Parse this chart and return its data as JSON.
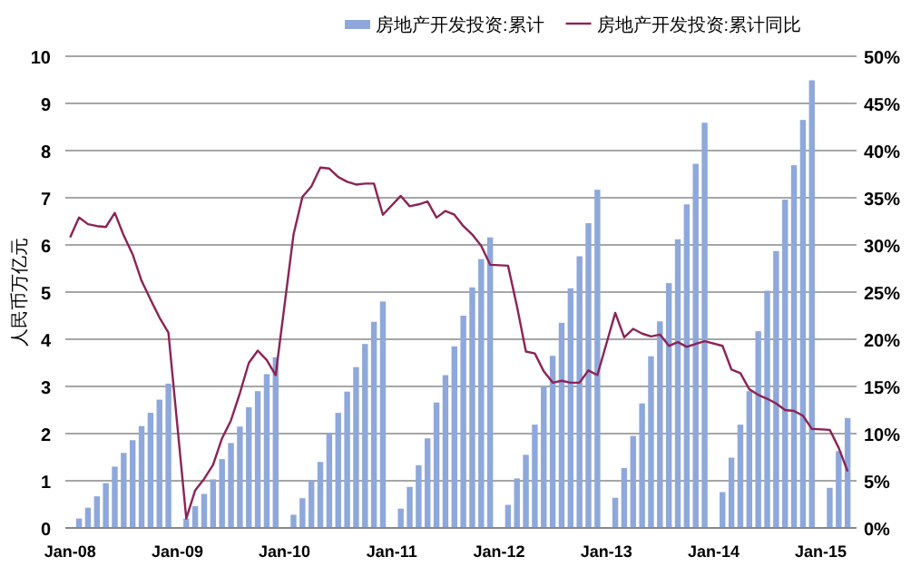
{
  "chart_data": {
    "type": "bar",
    "ylabel": "人民币万亿元",
    "legend": "top right",
    "grid": "y",
    "xlim": [
      "2007-12-15",
      "2015-05-01"
    ],
    "xticks": [
      {
        "value": "2008-01",
        "label": "Jan-08"
      },
      {
        "value": "2009-01",
        "label": "Jan-09"
      },
      {
        "value": "2010-01",
        "label": "Jan-10"
      },
      {
        "value": "2011-01",
        "label": "Jan-11"
      },
      {
        "value": "2012-01",
        "label": "Jan-12"
      },
      {
        "value": "2013-01",
        "label": "Jan-13"
      },
      {
        "value": "2014-01",
        "label": "Jan-14"
      },
      {
        "value": "2015-01",
        "label": "Jan-15"
      }
    ],
    "ylim": [
      0,
      10
    ],
    "yticks": [
      0,
      1,
      2,
      3,
      4,
      5,
      6,
      7,
      8,
      9,
      10
    ],
    "y2lim": [
      0,
      50
    ],
    "y2ticks": [
      {
        "value": 0,
        "label": "0%"
      },
      {
        "value": 5,
        "label": "5%"
      },
      {
        "value": 10,
        "label": "10%"
      },
      {
        "value": 15,
        "label": "15%"
      },
      {
        "value": 20,
        "label": "20%"
      },
      {
        "value": 25,
        "label": "25%"
      },
      {
        "value": 30,
        "label": "30%"
      },
      {
        "value": 35,
        "label": "35%"
      },
      {
        "value": 40,
        "label": "40%"
      },
      {
        "value": 45,
        "label": "45%"
      },
      {
        "value": 50,
        "label": "50%"
      }
    ],
    "series": [
      {
        "name": "房地产开发投资:累计",
        "color": "#8ea8db",
        "x": [
          "2008-02",
          "2008-03",
          "2008-04",
          "2008-05",
          "2008-06",
          "2008-07",
          "2008-08",
          "2008-09",
          "2008-10",
          "2008-11",
          "2008-12",
          "2009-02",
          "2009-03",
          "2009-04",
          "2009-05",
          "2009-06",
          "2009-07",
          "2009-08",
          "2009-09",
          "2009-10",
          "2009-11",
          "2009-12",
          "2010-02",
          "2010-03",
          "2010-04",
          "2010-05",
          "2010-06",
          "2010-07",
          "2010-08",
          "2010-09",
          "2010-10",
          "2010-11",
          "2010-12",
          "2011-02",
          "2011-03",
          "2011-04",
          "2011-05",
          "2011-06",
          "2011-07",
          "2011-08",
          "2011-09",
          "2011-10",
          "2011-11",
          "2011-12",
          "2012-02",
          "2012-03",
          "2012-04",
          "2012-05",
          "2012-06",
          "2012-07",
          "2012-08",
          "2012-09",
          "2012-10",
          "2012-11",
          "2012-12",
          "2013-02",
          "2013-03",
          "2013-04",
          "2013-05",
          "2013-06",
          "2013-07",
          "2013-08",
          "2013-09",
          "2013-10",
          "2013-11",
          "2013-12",
          "2014-02",
          "2014-03",
          "2014-04",
          "2014-05",
          "2014-06",
          "2014-07",
          "2014-08",
          "2014-09",
          "2014-10",
          "2014-11",
          "2014-12",
          "2015-02",
          "2015-03",
          "2015-04"
        ],
        "values": [
          0.2,
          0.43,
          0.67,
          0.95,
          1.3,
          1.59,
          1.86,
          2.16,
          2.44,
          2.72,
          3.06,
          0.2,
          0.46,
          0.72,
          1.03,
          1.46,
          1.8,
          2.15,
          2.56,
          2.9,
          3.26,
          3.62,
          0.28,
          0.63,
          1.01,
          1.4,
          2.02,
          2.44,
          2.89,
          3.41,
          3.9,
          4.37,
          4.8,
          0.41,
          0.87,
          1.33,
          1.9,
          2.66,
          3.24,
          3.85,
          4.5,
          5.1,
          5.7,
          6.16,
          0.49,
          1.05,
          1.55,
          2.19,
          3.01,
          3.65,
          4.35,
          5.08,
          5.76,
          6.46,
          7.17,
          0.64,
          1.27,
          1.95,
          2.64,
          3.64,
          4.38,
          5.19,
          6.12,
          6.86,
          7.72,
          8.59,
          0.76,
          1.49,
          2.19,
          2.9,
          4.17,
          5.03,
          5.87,
          6.96,
          7.69,
          8.65,
          9.49,
          0.85,
          1.63,
          2.33
        ]
      },
      {
        "name": "房地产开发投资:累计同比",
        "type": "line",
        "axis": "y2",
        "color": "#8c2356",
        "x": [
          "2008-01",
          "2008-02",
          "2008-03",
          "2008-04",
          "2008-05",
          "2008-06",
          "2008-07",
          "2008-08",
          "2008-09",
          "2008-10",
          "2008-11",
          "2008-12",
          "2009-02",
          "2009-03",
          "2009-04",
          "2009-05",
          "2009-06",
          "2009-07",
          "2009-08",
          "2009-09",
          "2009-10",
          "2009-11",
          "2009-12",
          "2010-02",
          "2010-03",
          "2010-04",
          "2010-05",
          "2010-06",
          "2010-07",
          "2010-08",
          "2010-09",
          "2010-10",
          "2010-11",
          "2010-12",
          "2011-02",
          "2011-03",
          "2011-04",
          "2011-05",
          "2011-06",
          "2011-07",
          "2011-08",
          "2011-09",
          "2011-10",
          "2011-11",
          "2011-12",
          "2012-02",
          "2012-03",
          "2012-04",
          "2012-05",
          "2012-06",
          "2012-07",
          "2012-08",
          "2012-09",
          "2012-10",
          "2012-11",
          "2012-12",
          "2013-02",
          "2013-03",
          "2013-04",
          "2013-05",
          "2013-06",
          "2013-07",
          "2013-08",
          "2013-09",
          "2013-10",
          "2013-11",
          "2013-12",
          "2014-02",
          "2014-03",
          "2014-04",
          "2014-05",
          "2014-06",
          "2014-07",
          "2014-08",
          "2014-09",
          "2014-10",
          "2014-11",
          "2014-12",
          "2015-02",
          "2015-03",
          "2015-04"
        ],
        "values": [
          30.8,
          32.9,
          32.2,
          32.0,
          31.9,
          33.4,
          31.0,
          29.0,
          26.2,
          24.2,
          22.3,
          20.7,
          1.0,
          4.0,
          5.2,
          6.7,
          9.5,
          11.4,
          14.3,
          17.5,
          18.8,
          17.8,
          16.2,
          31.1,
          35.1,
          36.2,
          38.2,
          38.1,
          37.2,
          36.7,
          36.4,
          36.5,
          36.5,
          33.2,
          35.2,
          34.1,
          34.3,
          34.6,
          32.9,
          33.6,
          33.2,
          32.0,
          31.1,
          29.9,
          27.9,
          27.8,
          23.5,
          18.7,
          18.5,
          16.6,
          15.4,
          15.6,
          15.4,
          15.4,
          16.7,
          16.2,
          22.8,
          20.2,
          21.1,
          20.6,
          20.3,
          20.5,
          19.3,
          19.7,
          19.2,
          19.5,
          19.8,
          19.3,
          16.8,
          16.4,
          14.7,
          14.1,
          13.7,
          13.2,
          12.5,
          12.4,
          11.9,
          10.5,
          10.4,
          8.5,
          6.0
        ]
      }
    ]
  }
}
